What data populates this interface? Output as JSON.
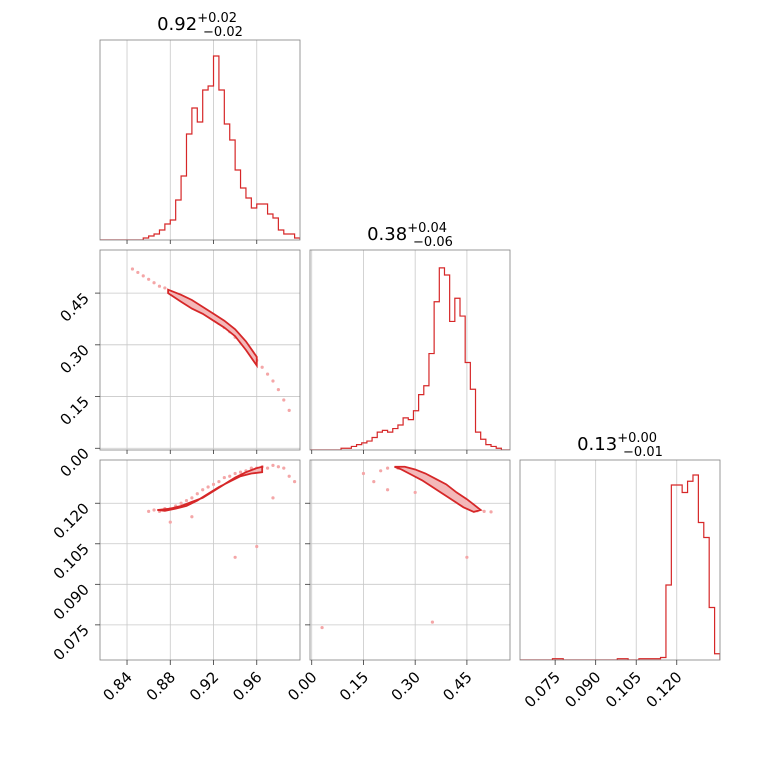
{
  "chart_data": [
    {
      "type": "histogram",
      "panel": "diag-1",
      "title": {
        "value": "0.92",
        "plus": "+0.02",
        "minus": "−0.02"
      },
      "xlim": [
        0.815,
        1.0
      ],
      "grid": true,
      "bin_edges": [
        0.815,
        0.82,
        0.825,
        0.83,
        0.835,
        0.84,
        0.845,
        0.85,
        0.855,
        0.86,
        0.865,
        0.87,
        0.875,
        0.88,
        0.885,
        0.89,
        0.895,
        0.9,
        0.905,
        0.91,
        0.915,
        0.92,
        0.925,
        0.93,
        0.935,
        0.94,
        0.945,
        0.95,
        0.955,
        0.96,
        0.965,
        0.97,
        0.975,
        0.98,
        0.985,
        0.99,
        0.995,
        1.0
      ],
      "counts": [
        0,
        0,
        0,
        0,
        0,
        0,
        0,
        0,
        1,
        2,
        3,
        5,
        8,
        10,
        20,
        32,
        53,
        66,
        59,
        75,
        77,
        92,
        75,
        58,
        50,
        35,
        26,
        21,
        16,
        18,
        18,
        13,
        11,
        5,
        3,
        3,
        1
      ],
      "ymax": 100
    },
    {
      "type": "scatter_contour",
      "panel": "lower-2-1",
      "xlim": [
        0.815,
        1.0
      ],
      "ylim": [
        -0.005,
        0.575
      ],
      "grid": true,
      "points_x": [
        0.845,
        0.85,
        0.855,
        0.86,
        0.865,
        0.87,
        0.875,
        0.88,
        0.885,
        0.89,
        0.895,
        0.9,
        0.905,
        0.91,
        0.915,
        0.92,
        0.925,
        0.93,
        0.935,
        0.94,
        0.945,
        0.95,
        0.955,
        0.96,
        0.965,
        0.97,
        0.975,
        0.98,
        0.985,
        0.99
      ],
      "points_y": [
        0.52,
        0.51,
        0.5,
        0.49,
        0.48,
        0.47,
        0.465,
        0.455,
        0.445,
        0.435,
        0.425,
        0.415,
        0.405,
        0.395,
        0.385,
        0.375,
        0.362,
        0.35,
        0.338,
        0.322,
        0.308,
        0.29,
        0.275,
        0.255,
        0.235,
        0.215,
        0.195,
        0.17,
        0.14,
        0.11
      ],
      "contour_x": [
        0.878,
        0.89,
        0.9,
        0.91,
        0.92,
        0.93,
        0.94,
        0.95,
        0.96,
        0.96,
        0.95,
        0.94,
        0.93,
        0.92,
        0.91,
        0.9,
        0.89,
        0.878
      ],
      "contour_y": [
        0.46,
        0.445,
        0.43,
        0.41,
        0.39,
        0.37,
        0.345,
        0.31,
        0.265,
        0.24,
        0.285,
        0.325,
        0.35,
        0.37,
        0.39,
        0.405,
        0.425,
        0.45
      ]
    },
    {
      "type": "histogram",
      "panel": "diag-2",
      "title": {
        "value": "0.38",
        "plus": "+0.04",
        "minus": "−0.06"
      },
      "xlim": [
        -0.005,
        0.575
      ],
      "grid": true,
      "bin_edges": [
        -0.005,
        0.01,
        0.025,
        0.04,
        0.055,
        0.07,
        0.085,
        0.1,
        0.115,
        0.13,
        0.145,
        0.16,
        0.175,
        0.19,
        0.205,
        0.22,
        0.235,
        0.25,
        0.265,
        0.28,
        0.295,
        0.31,
        0.325,
        0.34,
        0.355,
        0.37,
        0.385,
        0.4,
        0.415,
        0.43,
        0.445,
        0.46,
        0.475,
        0.49,
        0.505,
        0.52,
        0.535,
        0.55,
        0.565,
        0.575
      ],
      "counts": [
        0,
        0,
        0,
        0,
        0,
        0,
        1,
        1,
        2,
        3,
        4,
        5,
        7,
        10,
        11,
        10,
        12,
        14,
        18,
        17,
        22,
        31,
        36,
        54,
        83,
        102,
        98,
        72,
        85,
        75,
        49,
        34,
        10,
        6,
        3,
        2,
        1,
        0,
        0
      ],
      "ymax": 112
    },
    {
      "type": "scatter_contour",
      "panel": "lower-3-1",
      "xlim": [
        0.815,
        1.0
      ],
      "ylim": [
        0.062,
        0.136
      ],
      "grid": true,
      "points_x": [
        0.86,
        0.865,
        0.87,
        0.875,
        0.88,
        0.885,
        0.89,
        0.895,
        0.9,
        0.905,
        0.91,
        0.915,
        0.92,
        0.925,
        0.93,
        0.935,
        0.94,
        0.945,
        0.95,
        0.955,
        0.96,
        0.965,
        0.97,
        0.975,
        0.98,
        0.985,
        0.99,
        0.995,
        0.94,
        0.96,
        0.975,
        0.88,
        0.9
      ],
      "points_y": [
        0.117,
        0.1175,
        0.117,
        0.118,
        0.118,
        0.119,
        0.12,
        0.121,
        0.122,
        0.1235,
        0.125,
        0.126,
        0.127,
        0.128,
        0.1295,
        0.13,
        0.131,
        0.1315,
        0.132,
        0.133,
        0.133,
        0.1335,
        0.133,
        0.134,
        0.1335,
        0.133,
        0.13,
        0.128,
        0.1,
        0.104,
        0.122,
        0.113,
        0.115
      ],
      "contour_x": [
        0.868,
        0.88,
        0.89,
        0.9,
        0.91,
        0.92,
        0.93,
        0.94,
        0.95,
        0.96,
        0.965,
        0.965,
        0.955,
        0.945,
        0.935,
        0.925,
        0.915,
        0.905,
        0.895,
        0.885,
        0.875,
        0.868
      ],
      "contour_y": [
        0.1175,
        0.118,
        0.119,
        0.1205,
        0.122,
        0.1245,
        0.127,
        0.1295,
        0.1315,
        0.133,
        0.1335,
        0.1315,
        0.131,
        0.13,
        0.128,
        0.126,
        0.1235,
        0.121,
        0.119,
        0.118,
        0.1172,
        0.1175
      ]
    },
    {
      "type": "scatter_contour",
      "panel": "lower-3-2",
      "xlim": [
        -0.005,
        0.575
      ],
      "ylim": [
        0.062,
        0.136
      ],
      "grid": true,
      "points_x": [
        0.15,
        0.2,
        0.22,
        0.25,
        0.27,
        0.28,
        0.3,
        0.32,
        0.34,
        0.36,
        0.38,
        0.4,
        0.42,
        0.44,
        0.46,
        0.48,
        0.5,
        0.52,
        0.22,
        0.3,
        0.03,
        0.35,
        0.45,
        0.18
      ],
      "points_y": [
        0.131,
        0.132,
        0.133,
        0.133,
        0.133,
        0.1325,
        0.132,
        0.131,
        0.13,
        0.128,
        0.126,
        0.124,
        0.122,
        0.12,
        0.118,
        0.1172,
        0.117,
        0.1168,
        0.125,
        0.124,
        0.074,
        0.076,
        0.1,
        0.128
      ],
      "contour_x": [
        0.24,
        0.27,
        0.3,
        0.33,
        0.36,
        0.39,
        0.42,
        0.45,
        0.47,
        0.49,
        0.47,
        0.44,
        0.41,
        0.38,
        0.35,
        0.32,
        0.29,
        0.26,
        0.24
      ],
      "contour_y": [
        0.1335,
        0.1335,
        0.1325,
        0.131,
        0.129,
        0.127,
        0.124,
        0.1215,
        0.1195,
        0.1175,
        0.1168,
        0.1185,
        0.121,
        0.1235,
        0.126,
        0.1285,
        0.1305,
        0.1325,
        0.1335
      ]
    },
    {
      "type": "histogram",
      "panel": "diag-3",
      "title": {
        "value": "0.13",
        "plus": "+0.00",
        "minus": "−0.01"
      },
      "xlim": [
        0.062,
        0.136
      ],
      "grid": true,
      "bin_edges": [
        0.062,
        0.066,
        0.07,
        0.074,
        0.078,
        0.082,
        0.086,
        0.09,
        0.094,
        0.098,
        0.102,
        0.106,
        0.11,
        0.114,
        0.116,
        0.118,
        0.12,
        0.122,
        0.124,
        0.126,
        0.128,
        0.13,
        0.132,
        0.134,
        0.136
      ],
      "counts": [
        0,
        0,
        0,
        1,
        0,
        0,
        0,
        0,
        0,
        1,
        0,
        1,
        1,
        2,
        60,
        140,
        140,
        134,
        143,
        148,
        110,
        98,
        42,
        5
      ],
      "ymax": 160
    }
  ],
  "axes": {
    "bottom_left_ticks": [
      "0.84",
      "0.88",
      "0.92",
      "0.96"
    ],
    "bottom_left_ticks_values": [
      0.84,
      0.88,
      0.92,
      0.96
    ],
    "bottom_mid_ticks": [
      "0.00",
      "0.15",
      "0.30",
      "0.45"
    ],
    "bottom_mid_ticks_values": [
      0.0,
      0.15,
      0.3,
      0.45
    ],
    "bottom_right_ticks": [
      "0.075",
      "0.090",
      "0.105",
      "0.120"
    ],
    "bottom_right_ticks_values": [
      0.075,
      0.09,
      0.105,
      0.12
    ],
    "left_mid_ticks": [
      "0.45",
      "0.30",
      "0.15",
      "0.00"
    ],
    "left_mid_ticks_values": [
      0.45,
      0.3,
      0.15,
      0.0
    ],
    "left_bottom_ticks": [
      "0.120",
      "0.105",
      "0.090",
      "0.075"
    ],
    "left_bottom_ticks_values": [
      0.12,
      0.105,
      0.09,
      0.075
    ]
  },
  "colors": {
    "series": "#d62728",
    "fill": "#f3b8b9",
    "grid": "#c8c8c8",
    "frame": "#808080"
  }
}
